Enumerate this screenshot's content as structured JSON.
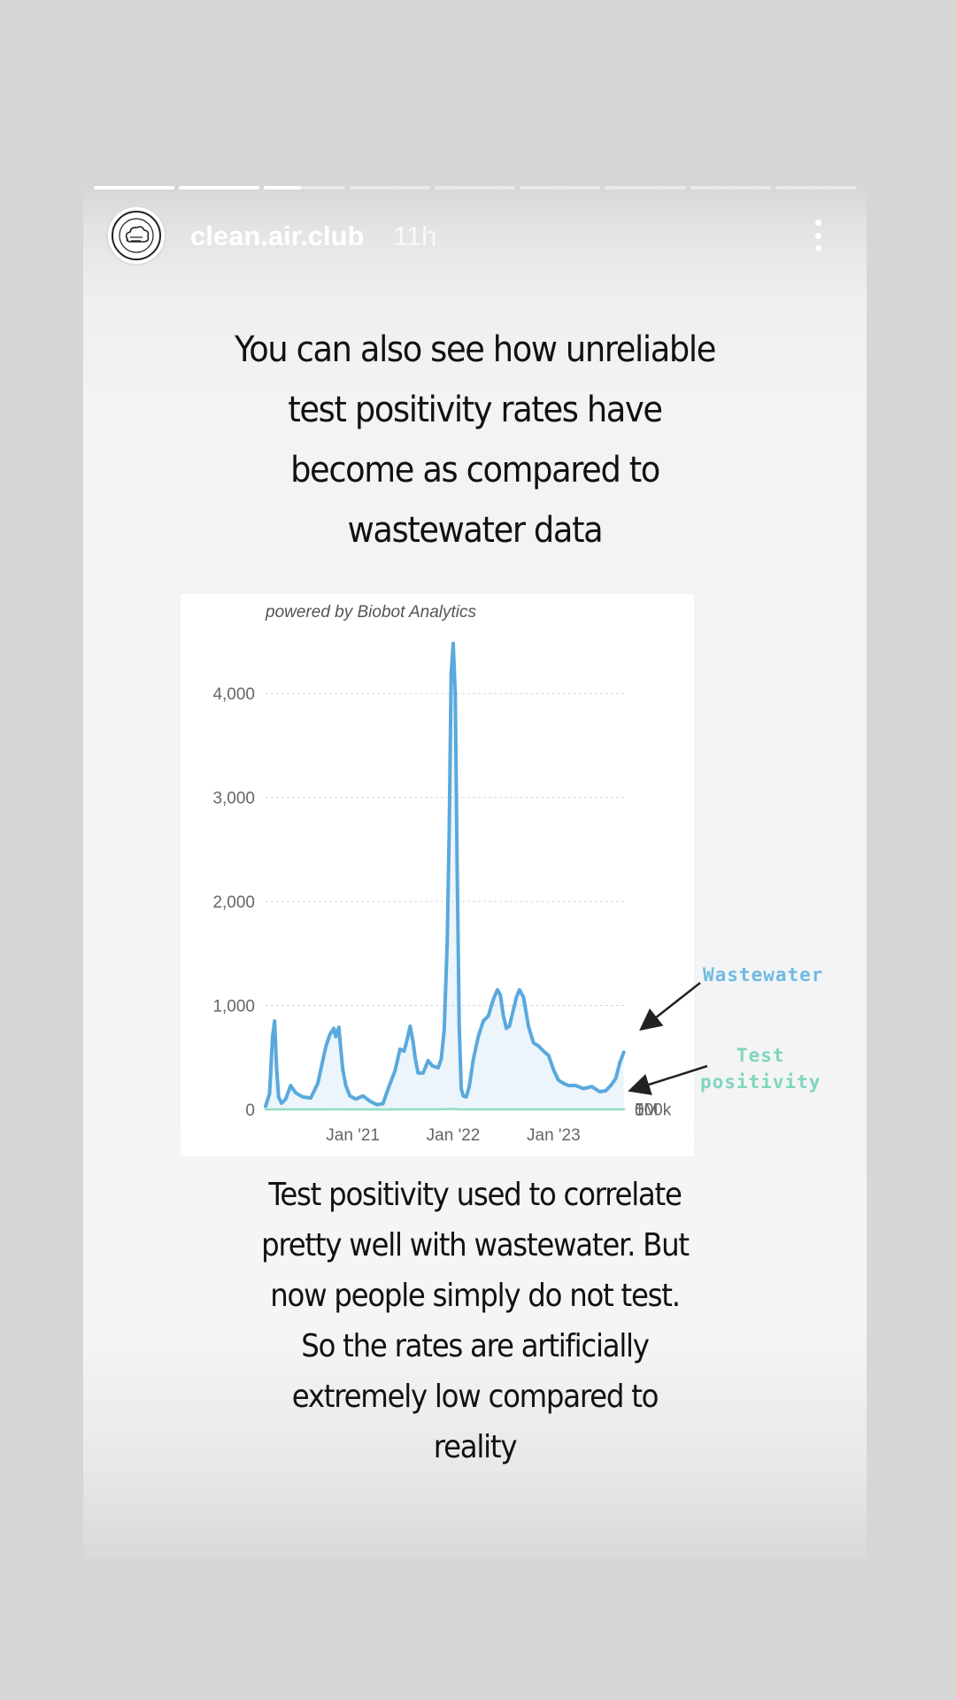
{
  "story": {
    "progress": {
      "segments": 9,
      "completed": 2,
      "current_fraction": 0.45
    },
    "header": {
      "username": "clean.air.club",
      "timestamp": "11h",
      "more_icon": "more-vertical-icon",
      "avatar_icon": "clean-air-club-logo"
    },
    "headline": "You can also see how unreliable\ntest positivity rates have\nbecome as compared to\nwastewater data",
    "body": "Test positivity used to correlate\npretty well with wastewater. But\nnow people simply do not test.\nSo the rates are artificially\nextremely low compared to\nreality",
    "annotations": {
      "wastewater": "Wastewater",
      "test_positivity": "Test\npositivity"
    },
    "colors": {
      "wastewater": "#5aa9dd",
      "test_positivity": "#8fdcc4",
      "annotation_wastewater": "#6fb9e2",
      "annotation_test": "#7fd6bc"
    }
  },
  "chart_data": {
    "type": "line",
    "title": "powered by Biobot Analytics",
    "x_tick_labels": [
      "Jan '21",
      "Jan '22",
      "Jan '23"
    ],
    "x_ticks": [
      2021.0,
      2022.0,
      2023.0
    ],
    "xlim": [
      2020.13,
      2023.72
    ],
    "left_axis": {
      "ticks": [
        0,
        1000,
        2000,
        3000,
        4000
      ],
      "tick_labels": [
        "0",
        "1,000",
        "2,000",
        "3,000",
        "4,000"
      ],
      "ylim": [
        0,
        4700
      ]
    },
    "right_axis": {
      "ticks": [
        0,
        500000,
        1000000
      ],
      "tick_labels": [
        "0",
        "500k",
        "1M"
      ]
    },
    "grid": true,
    "series": [
      {
        "name": "Wastewater",
        "axis": "left",
        "x": [
          2020.13,
          2020.17,
          2020.2,
          2020.22,
          2020.24,
          2020.26,
          2020.29,
          2020.33,
          2020.38,
          2020.43,
          2020.5,
          2020.58,
          2020.65,
          2020.73,
          2020.77,
          2020.81,
          2020.83,
          2020.86,
          2020.88,
          2020.9,
          2020.93,
          2020.97,
          2021.03,
          2021.1,
          2021.17,
          2021.24,
          2021.3,
          2021.36,
          2021.42,
          2021.47,
          2021.51,
          2021.54,
          2021.57,
          2021.6,
          2021.62,
          2021.65,
          2021.7,
          2021.75,
          2021.79,
          2021.85,
          2021.88,
          2021.91,
          2021.94,
          2021.96,
          2021.98,
          2022.0,
          2022.02,
          2022.04,
          2022.06,
          2022.08,
          2022.1,
          2022.13,
          2022.16,
          2022.2,
          2022.25,
          2022.3,
          2022.35,
          2022.4,
          2022.44,
          2022.47,
          2022.5,
          2022.53,
          2022.56,
          2022.6,
          2022.63,
          2022.66,
          2022.7,
          2022.75,
          2022.8,
          2022.85,
          2022.9,
          2022.95,
          2023.0,
          2023.05,
          2023.1,
          2023.15,
          2023.22,
          2023.3,
          2023.38,
          2023.46,
          2023.52,
          2023.57,
          2023.62,
          2023.66,
          2023.7
        ],
        "y": [
          30,
          150,
          700,
          850,
          400,
          120,
          60,
          100,
          230,
          160,
          120,
          110,
          250,
          600,
          720,
          780,
          700,
          790,
          580,
          380,
          230,
          130,
          100,
          130,
          80,
          45,
          55,
          220,
          370,
          580,
          560,
          670,
          800,
          650,
          500,
          350,
          350,
          470,
          420,
          400,
          480,
          760,
          1600,
          2700,
          4200,
          4480,
          4000,
          2300,
          800,
          200,
          130,
          120,
          220,
          480,
          700,
          850,
          900,
          1060,
          1150,
          1100,
          900,
          780,
          800,
          960,
          1080,
          1150,
          1080,
          800,
          640,
          610,
          560,
          520,
          380,
          280,
          250,
          230,
          230,
          200,
          220,
          170,
          180,
          230,
          300,
          450,
          550
        ]
      },
      {
        "name": "Test positivity",
        "axis": "right",
        "x": [
          2020.13,
          2020.2,
          2020.25,
          2020.3,
          2020.38,
          2020.5,
          2020.6,
          2020.7,
          2020.76,
          2020.82,
          2020.88,
          2020.92,
          2020.96,
          2021.05,
          2021.15,
          2021.25,
          2021.3,
          2021.38,
          2021.45,
          2021.52,
          2021.56,
          2021.6,
          2021.65,
          2021.72,
          2021.8,
          2021.88,
          2021.92,
          2021.96,
          2022.0,
          2022.03,
          2022.06,
          2022.1,
          2022.2,
          2022.3,
          2022.4,
          2022.45,
          2022.5,
          2022.55,
          2022.6,
          2022.65,
          2022.7,
          2022.8,
          2022.9,
          2023.0,
          2023.1,
          2023.2,
          2023.3,
          2023.4,
          2023.5,
          2023.6,
          2023.7
        ],
        "y": [
          10000,
          40000,
          45000,
          25000,
          15000,
          25000,
          30000,
          60000,
          160000,
          250000,
          190000,
          100000,
          45000,
          20000,
          10000,
          8000,
          12000,
          40000,
          110000,
          190000,
          215000,
          160000,
          110000,
          90000,
          95000,
          130000,
          320000,
          700000,
          1000000,
          760000,
          260000,
          60000,
          30000,
          30000,
          55000,
          70000,
          75000,
          80000,
          70000,
          60000,
          55000,
          40000,
          30000,
          20000,
          18000,
          15000,
          10000,
          6000,
          4000,
          3000,
          2000
        ]
      }
    ]
  }
}
